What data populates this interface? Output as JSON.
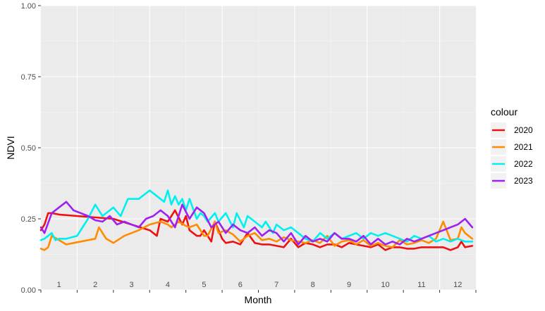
{
  "chart_data": {
    "type": "line",
    "xlabel": "Month",
    "ylabel": "NDVI",
    "ylim": [
      0,
      1
    ],
    "y_ticks": [
      "0.00",
      "0.25",
      "0.50",
      "0.75",
      "1.00"
    ],
    "y_tick_values": [
      0,
      0.25,
      0.5,
      0.75,
      1.0
    ],
    "x_range": [
      0.5,
      12.5
    ],
    "month_labels": [
      "1",
      "2",
      "3",
      "4",
      "5",
      "6",
      "7",
      "8",
      "9",
      "10",
      "11",
      "12"
    ],
    "grid": true,
    "legend": {
      "title": "colour",
      "position": "right"
    },
    "series": [
      {
        "name": "2020",
        "color": "#ee1111",
        "x": [
          0.5,
          0.6,
          0.7,
          0.8,
          1.0,
          1.5,
          2.0,
          2.5,
          3.0,
          3.5,
          3.7,
          3.8,
          4.0,
          4.1,
          4.2,
          4.4,
          4.5,
          4.6,
          4.8,
          4.9,
          5.0,
          5.2,
          5.3,
          5.5,
          5.6,
          5.8,
          6.0,
          6.2,
          6.4,
          6.6,
          6.8,
          7.0,
          7.2,
          7.4,
          7.6,
          7.8,
          8.0,
          8.2,
          8.4,
          8.6,
          8.8,
          9.0,
          9.2,
          9.4,
          9.6,
          9.8,
          10.0,
          10.2,
          10.4,
          10.6,
          10.8,
          11.0,
          11.3,
          11.6,
          11.8,
          12.0,
          12.1,
          12.2,
          12.4
        ],
        "y": [
          0.21,
          0.23,
          0.27,
          0.27,
          0.265,
          0.26,
          0.255,
          0.25,
          0.23,
          0.21,
          0.19,
          0.25,
          0.24,
          0.26,
          0.28,
          0.23,
          0.26,
          0.21,
          0.19,
          0.19,
          0.21,
          0.17,
          0.24,
          0.18,
          0.165,
          0.17,
          0.16,
          0.2,
          0.165,
          0.16,
          0.16,
          0.155,
          0.15,
          0.18,
          0.15,
          0.165,
          0.16,
          0.15,
          0.16,
          0.16,
          0.15,
          0.165,
          0.16,
          0.155,
          0.15,
          0.16,
          0.14,
          0.15,
          0.15,
          0.145,
          0.145,
          0.15,
          0.15,
          0.15,
          0.14,
          0.15,
          0.17,
          0.15,
          0.155
        ]
      },
      {
        "name": "2021",
        "color": "#ff8c00",
        "x": [
          0.5,
          0.6,
          0.7,
          0.8,
          1.0,
          1.2,
          1.4,
          1.6,
          2.0,
          2.1,
          2.3,
          2.5,
          2.8,
          3.2,
          3.5,
          3.8,
          4.0,
          4.1,
          4.3,
          4.5,
          4.6,
          4.8,
          5.0,
          5.1,
          5.3,
          5.4,
          5.6,
          5.8,
          6.0,
          6.2,
          6.4,
          6.6,
          6.8,
          7.0,
          7.2,
          7.4,
          7.6,
          7.8,
          8.0,
          8.2,
          8.4,
          8.6,
          8.8,
          9.0,
          9.2,
          9.4,
          9.6,
          9.8,
          10.0,
          10.2,
          10.4,
          10.6,
          10.8,
          11.0,
          11.2,
          11.4,
          11.6,
          11.8,
          12.0,
          12.1,
          12.2,
          12.4
        ],
        "y": [
          0.145,
          0.14,
          0.15,
          0.19,
          0.175,
          0.16,
          0.165,
          0.17,
          0.18,
          0.22,
          0.18,
          0.165,
          0.19,
          0.21,
          0.23,
          0.24,
          0.23,
          0.22,
          0.24,
          0.225,
          0.22,
          0.23,
          0.19,
          0.19,
          0.24,
          0.2,
          0.21,
          0.195,
          0.17,
          0.19,
          0.2,
          0.175,
          0.18,
          0.17,
          0.185,
          0.175,
          0.17,
          0.165,
          0.175,
          0.165,
          0.19,
          0.155,
          0.17,
          0.175,
          0.16,
          0.175,
          0.155,
          0.165,
          0.155,
          0.15,
          0.175,
          0.16,
          0.165,
          0.175,
          0.165,
          0.18,
          0.24,
          0.175,
          0.18,
          0.22,
          0.2,
          0.18
        ]
      },
      {
        "name": "2022",
        "color": "#00f0f0",
        "x": [
          0.5,
          0.6,
          0.7,
          0.8,
          0.9,
          1.0,
          1.2,
          1.5,
          1.8,
          2.0,
          2.2,
          2.4,
          2.5,
          2.7,
          2.9,
          3.0,
          3.2,
          3.5,
          3.7,
          3.9,
          4.0,
          4.1,
          4.2,
          4.3,
          4.4,
          4.5,
          4.6,
          4.8,
          4.9,
          5.0,
          5.1,
          5.3,
          5.4,
          5.6,
          5.8,
          5.9,
          6.1,
          6.2,
          6.4,
          6.6,
          6.7,
          6.9,
          7.0,
          7.2,
          7.4,
          7.6,
          7.8,
          8.0,
          8.2,
          8.4,
          8.6,
          8.8,
          9.0,
          9.2,
          9.4,
          9.6,
          9.8,
          10.0,
          10.2,
          10.4,
          10.6,
          10.8,
          11.0,
          11.2,
          11.4,
          11.6,
          11.8,
          12.0,
          12.2,
          12.4
        ],
        "y": [
          0.175,
          0.18,
          0.19,
          0.2,
          0.175,
          0.18,
          0.18,
          0.19,
          0.25,
          0.3,
          0.26,
          0.28,
          0.29,
          0.26,
          0.32,
          0.32,
          0.32,
          0.35,
          0.33,
          0.31,
          0.35,
          0.3,
          0.33,
          0.3,
          0.32,
          0.28,
          0.32,
          0.25,
          0.27,
          0.26,
          0.24,
          0.27,
          0.24,
          0.27,
          0.22,
          0.27,
          0.22,
          0.26,
          0.24,
          0.22,
          0.24,
          0.2,
          0.23,
          0.21,
          0.22,
          0.2,
          0.18,
          0.17,
          0.2,
          0.18,
          0.2,
          0.18,
          0.19,
          0.2,
          0.18,
          0.2,
          0.19,
          0.2,
          0.19,
          0.18,
          0.17,
          0.19,
          0.18,
          0.19,
          0.17,
          0.18,
          0.17,
          0.18,
          0.17,
          0.17
        ]
      },
      {
        "name": "2023",
        "color": "#a020f0",
        "x": [
          0.5,
          0.6,
          0.8,
          1.0,
          1.2,
          1.4,
          1.6,
          1.8,
          2.0,
          2.2,
          2.4,
          2.6,
          2.8,
          3.0,
          3.2,
          3.4,
          3.6,
          3.8,
          4.0,
          4.2,
          4.4,
          4.6,
          4.8,
          5.0,
          5.2,
          5.4,
          5.6,
          5.8,
          6.0,
          6.2,
          6.4,
          6.6,
          6.8,
          7.0,
          7.2,
          7.4,
          7.6,
          7.8,
          8.0,
          8.2,
          8.4,
          8.6,
          8.8,
          9.0,
          9.2,
          9.4,
          9.6,
          9.8,
          10.0,
          10.2,
          10.4,
          10.6,
          10.8,
          11.0,
          11.2,
          11.4,
          11.6,
          11.8,
          12.0,
          12.2,
          12.4
        ],
        "y": [
          0.22,
          0.2,
          0.27,
          0.29,
          0.31,
          0.28,
          0.27,
          0.26,
          0.245,
          0.24,
          0.26,
          0.23,
          0.24,
          0.23,
          0.22,
          0.25,
          0.26,
          0.28,
          0.26,
          0.22,
          0.3,
          0.25,
          0.29,
          0.27,
          0.22,
          0.24,
          0.2,
          0.23,
          0.21,
          0.2,
          0.22,
          0.19,
          0.21,
          0.2,
          0.17,
          0.2,
          0.16,
          0.19,
          0.17,
          0.18,
          0.17,
          0.2,
          0.18,
          0.18,
          0.17,
          0.19,
          0.16,
          0.18,
          0.16,
          0.17,
          0.16,
          0.18,
          0.17,
          0.18,
          0.19,
          0.2,
          0.21,
          0.22,
          0.23,
          0.25,
          0.22
        ]
      }
    ]
  }
}
